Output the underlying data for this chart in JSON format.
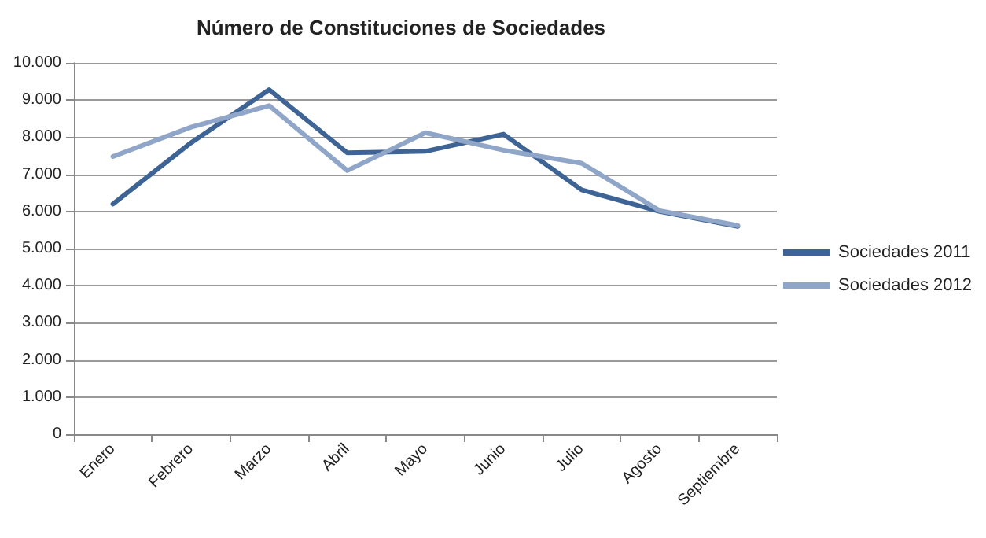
{
  "chart_data": {
    "type": "line",
    "title": "Número de Constituciones de Sociedades",
    "categories": [
      "Enero",
      "Febrero",
      "Marzo",
      "Abril",
      "Mayo",
      "Junio",
      "Julio",
      "Agosto",
      "Septiembre"
    ],
    "series": [
      {
        "name": "Sociedades 2011",
        "color": "#3e6496",
        "values": [
          6200,
          7850,
          9280,
          7580,
          7620,
          8080,
          6580,
          6000,
          5600
        ]
      },
      {
        "name": "Sociedades 2012",
        "color": "#8fa6c8",
        "values": [
          7480,
          8270,
          8850,
          7100,
          8120,
          7650,
          7300,
          6020,
          5620
        ]
      }
    ],
    "ylim": [
      0,
      10000
    ],
    "yticks": [
      {
        "value": 0,
        "label": "0"
      },
      {
        "value": 1000,
        "label": "1.000"
      },
      {
        "value": 2000,
        "label": "2.000"
      },
      {
        "value": 3000,
        "label": "3.000"
      },
      {
        "value": 4000,
        "label": "4.000"
      },
      {
        "value": 5000,
        "label": "5.000"
      },
      {
        "value": 6000,
        "label": "6.000"
      },
      {
        "value": 7000,
        "label": "7.000"
      },
      {
        "value": 8000,
        "label": "8.000"
      },
      {
        "value": 9000,
        "label": "9.000"
      },
      {
        "value": 10000,
        "label": "10.000"
      }
    ],
    "grid": "y",
    "legend": "right",
    "marker": "none",
    "line_style": "solid"
  }
}
